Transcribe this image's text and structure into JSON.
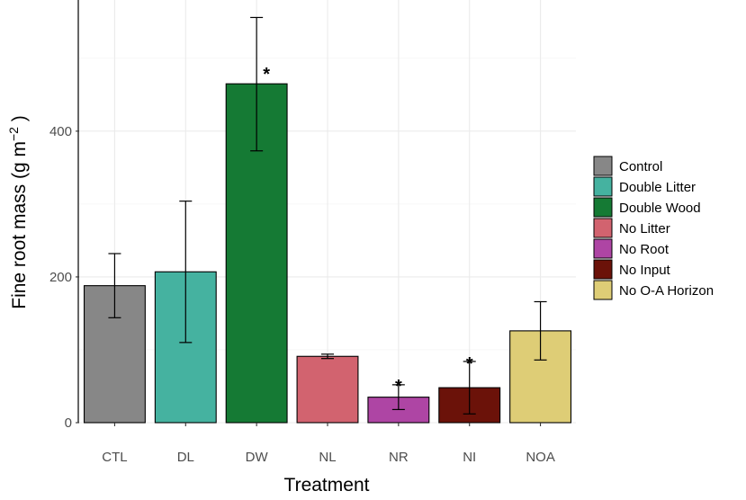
{
  "chart_data": {
    "type": "bar",
    "title": "",
    "xlabel": "Treatment",
    "ylabel_main": "Fine root mass (g m",
    "ylabel_sup": "−2",
    "ylabel_close": " )",
    "ylim": [
      0,
      580
    ],
    "yticks": [
      0,
      200,
      400
    ],
    "categories": [
      "CTL",
      "DL",
      "DW",
      "NL",
      "NR",
      "NI",
      "NOA"
    ],
    "values": [
      188,
      207,
      465,
      91,
      35,
      48,
      126
    ],
    "error_low": [
      144,
      110,
      373,
      88,
      18,
      12,
      86
    ],
    "error_high": [
      232,
      304,
      556,
      94,
      52,
      84,
      166
    ],
    "significance": [
      "",
      "",
      "*",
      "",
      "*",
      "*",
      ""
    ],
    "colors": [
      "#878787",
      "#45B2A0",
      "#157A34",
      "#D2636F",
      "#AE45A4",
      "#6B1209",
      "#DECD76"
    ],
    "legend": {
      "position": "right",
      "items": [
        "Control",
        "Double Litter",
        "Double Wood",
        "No Litter",
        "No Root",
        "No Input",
        "No O-A Horizon"
      ]
    },
    "grid": true
  }
}
